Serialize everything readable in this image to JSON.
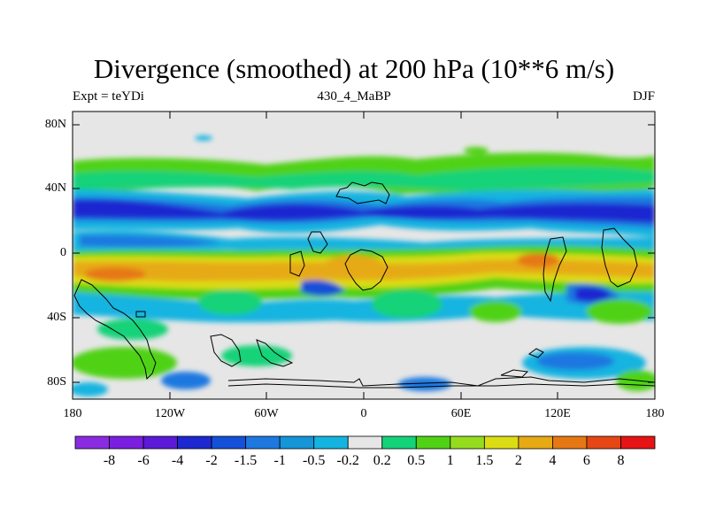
{
  "title": "Divergence (smoothed) at 200 hPa (10**6 m/s)",
  "left_label": "Expt = teYDi",
  "center_label": "430_4_MaBP",
  "right_label": "DJF",
  "y_ticks": [
    "80N",
    "40N",
    "0",
    "40S",
    "80S"
  ],
  "x_ticks": [
    "180",
    "120W",
    "60W",
    "0",
    "60E",
    "120E",
    "180"
  ],
  "colorbar": {
    "labels": [
      "-8",
      "-6",
      "-4",
      "-2",
      "-1.5",
      "-1",
      "-0.5",
      "-0.2",
      "0.2",
      "0.5",
      "1",
      "1.5",
      "2",
      "4",
      "6",
      "8"
    ],
    "colors": [
      "#8a2be2",
      "#7a1ee0",
      "#5a1ad8",
      "#1e28d0",
      "#1450d8",
      "#1e78e0",
      "#1496d8",
      "#14b4e0",
      "#e6e6e6",
      "#14d278",
      "#50d214",
      "#96dc1e",
      "#dcdc14",
      "#e6aa14",
      "#e67814",
      "#e64614",
      "#e61414"
    ]
  },
  "colors": {
    "strong_negative": "#1e28d0",
    "weak_negative": "#14b4e0",
    "neutral": "#e6e6e6",
    "weak_positive": "#50d214",
    "strong_positive": "#e64614"
  }
}
